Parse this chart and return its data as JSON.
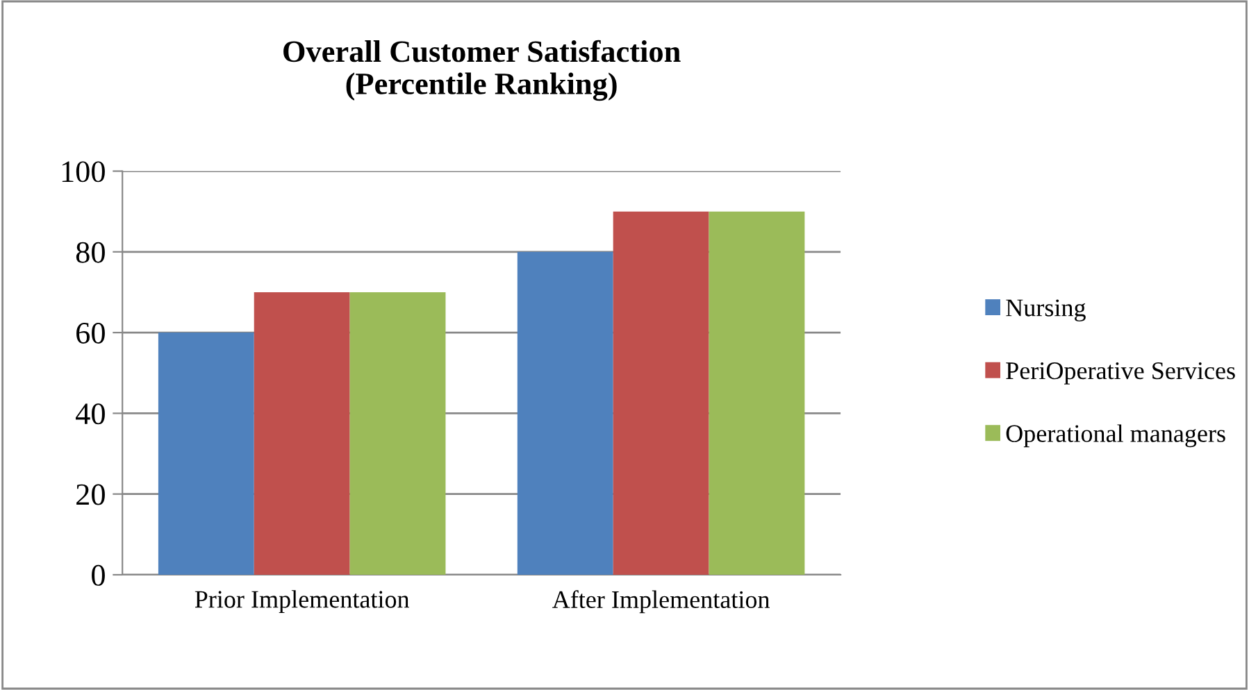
{
  "chart_data": {
    "type": "bar",
    "title": "Overall Customer Satisfaction\n(Percentile Ranking)",
    "categories": [
      "Prior Implementation",
      "After Implementation"
    ],
    "series": [
      {
        "name": "Nursing",
        "color": "#4f81bd",
        "values": [
          60,
          80
        ]
      },
      {
        "name": "PeriOperative Services",
        "color": "#c0504d",
        "values": [
          70,
          90
        ]
      },
      {
        "name": "Operational managers",
        "color": "#9bbb59",
        "values": [
          70,
          90
        ]
      }
    ],
    "ylim": [
      0,
      100
    ],
    "yticks": [
      0,
      20,
      40,
      60,
      80,
      100
    ],
    "grid": "y",
    "legend": "right"
  }
}
